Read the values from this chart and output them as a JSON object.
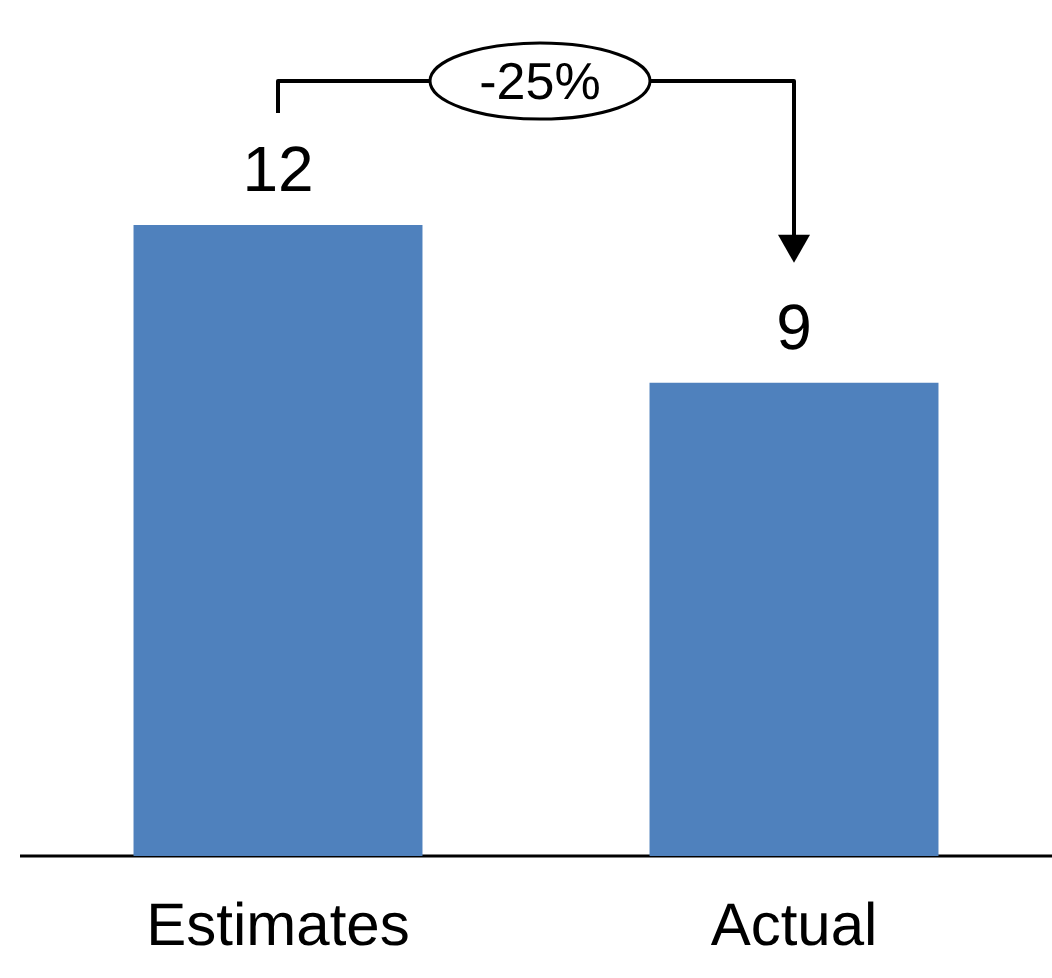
{
  "chart_data": {
    "type": "bar",
    "categories": [
      "Estimates",
      "Actual"
    ],
    "values": [
      12,
      9
    ],
    "color": "#4f81bd",
    "data_labels": true,
    "annotations": [
      "-25%"
    ]
  }
}
